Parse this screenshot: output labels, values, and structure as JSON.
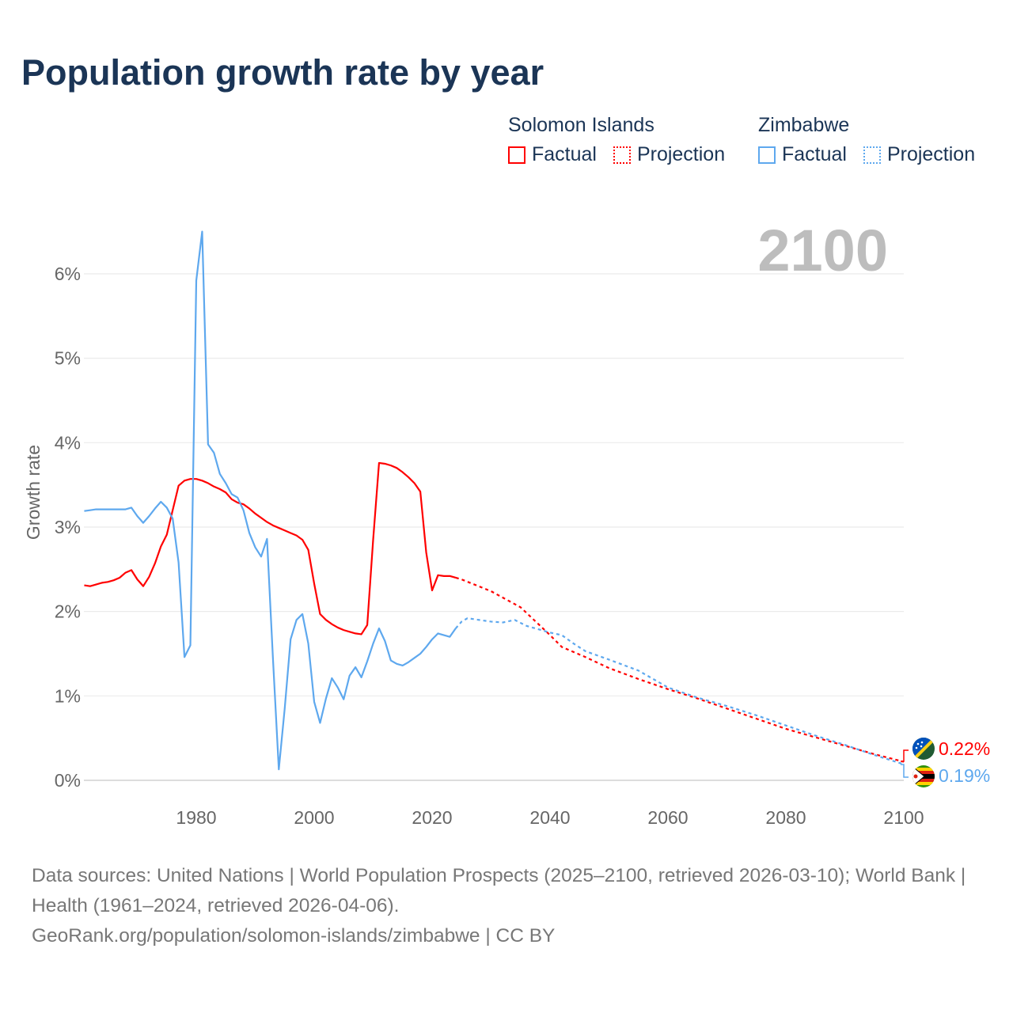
{
  "title": "Population growth rate by year",
  "legend": {
    "groups": [
      {
        "name": "Solomon Islands",
        "color": "#ff0000",
        "factual": "Factual",
        "projection": "Projection"
      },
      {
        "name": "Zimbabwe",
        "color": "#5ea8ee",
        "factual": "Factual",
        "projection": "Projection"
      }
    ]
  },
  "year_watermark": "2100",
  "end_labels": {
    "solomon": "0.22%",
    "zimbabwe": "0.19%"
  },
  "footer": {
    "sources": "Data sources: United Nations | World Population Prospects (2025–2100, retrieved 2026-03-10); World Bank | Health (1961–2024, retrieved 2026-04-06).",
    "credit": "GeoRank.org/population/solomon-islands/zimbabwe | CC BY"
  },
  "chart_data": {
    "type": "line",
    "title": "Population growth rate by year",
    "xlabel": "",
    "ylabel": "Growth rate",
    "xlim": [
      1961,
      2100
    ],
    "ylim": [
      0,
      6
    ],
    "x_ticks": [
      "1980",
      "2000",
      "2020",
      "2040",
      "2060",
      "2080",
      "2100"
    ],
    "y_ticks": [
      "0%",
      "1%",
      "2%",
      "3%",
      "4%",
      "5%",
      "6%"
    ],
    "grid": true,
    "legend_position": "top-right",
    "series": [
      {
        "name": "Solomon Islands — Factual",
        "color": "#ff0000",
        "dashed": false,
        "x": [
          1961,
          1962,
          1963,
          1964,
          1965,
          1966,
          1967,
          1968,
          1969,
          1970,
          1971,
          1972,
          1973,
          1974,
          1975,
          1976,
          1977,
          1978,
          1979,
          1980,
          1981,
          1982,
          1983,
          1984,
          1985,
          1986,
          1987,
          1988,
          1989,
          1990,
          1991,
          1992,
          1993,
          1994,
          1995,
          1996,
          1997,
          1998,
          1999,
          2000,
          2001,
          2002,
          2003,
          2004,
          2005,
          2006,
          2007,
          2008,
          2009,
          2010,
          2011,
          2012,
          2013,
          2014,
          2015,
          2016,
          2017,
          2018,
          2019,
          2020,
          2021,
          2022,
          2023,
          2024
        ],
        "y": [
          2.31,
          2.3,
          2.32,
          2.34,
          2.35,
          2.37,
          2.4,
          2.46,
          2.49,
          2.38,
          2.3,
          2.41,
          2.57,
          2.77,
          2.91,
          3.2,
          3.49,
          3.55,
          3.57,
          3.57,
          3.55,
          3.52,
          3.48,
          3.45,
          3.41,
          3.33,
          3.29,
          3.27,
          3.22,
          3.16,
          3.11,
          3.06,
          3.02,
          2.99,
          2.96,
          2.93,
          2.9,
          2.85,
          2.73,
          2.33,
          1.97,
          1.9,
          1.85,
          1.81,
          1.78,
          1.76,
          1.74,
          1.73,
          1.84,
          2.85,
          3.76,
          3.75,
          3.73,
          3.7,
          3.65,
          3.59,
          3.52,
          3.42,
          2.7,
          2.25,
          2.43,
          2.42,
          2.42,
          2.4
        ]
      },
      {
        "name": "Solomon Islands — Projection",
        "color": "#ff0000",
        "dashed": true,
        "x": [
          2024,
          2025,
          2030,
          2035,
          2040,
          2042,
          2046,
          2050,
          2055,
          2060,
          2065,
          2070,
          2075,
          2080,
          2085,
          2090,
          2095,
          2100
        ],
        "y": [
          2.4,
          2.38,
          2.24,
          2.05,
          1.72,
          1.58,
          1.46,
          1.33,
          1.2,
          1.08,
          0.97,
          0.85,
          0.73,
          0.61,
          0.51,
          0.41,
          0.31,
          0.22
        ]
      },
      {
        "name": "Zimbabwe — Factual",
        "color": "#5ea8ee",
        "dashed": false,
        "x": [
          1961,
          1962,
          1963,
          1964,
          1965,
          1966,
          1967,
          1968,
          1969,
          1970,
          1971,
          1972,
          1973,
          1974,
          1975,
          1976,
          1977,
          1978,
          1979,
          1980,
          1981,
          1982,
          1983,
          1984,
          1985,
          1986,
          1987,
          1988,
          1989,
          1990,
          1991,
          1992,
          1993,
          1994,
          1995,
          1996,
          1997,
          1998,
          1999,
          2000,
          2001,
          2002,
          2003,
          2004,
          2005,
          2006,
          2007,
          2008,
          2009,
          2010,
          2011,
          2012,
          2013,
          2014,
          2015,
          2016,
          2017,
          2018,
          2019,
          2020,
          2021,
          2022,
          2023,
          2024
        ],
        "y": [
          3.19,
          3.2,
          3.21,
          3.21,
          3.21,
          3.21,
          3.21,
          3.21,
          3.23,
          3.13,
          3.05,
          3.13,
          3.22,
          3.3,
          3.23,
          3.1,
          2.58,
          1.46,
          1.6,
          5.92,
          6.5,
          3.98,
          3.88,
          3.63,
          3.52,
          3.39,
          3.35,
          3.2,
          2.93,
          2.76,
          2.65,
          2.86,
          1.45,
          0.13,
          0.85,
          1.67,
          1.9,
          1.97,
          1.62,
          0.93,
          0.68,
          0.97,
          1.21,
          1.1,
          0.96,
          1.24,
          1.34,
          1.22,
          1.41,
          1.62,
          1.8,
          1.65,
          1.42,
          1.38,
          1.36,
          1.4,
          1.45,
          1.5,
          1.58,
          1.67,
          1.74,
          1.72,
          1.7,
          1.8
        ]
      },
      {
        "name": "Zimbabwe — Projection",
        "color": "#5ea8ee",
        "dashed": true,
        "x": [
          2024,
          2025,
          2026,
          2030,
          2032,
          2034,
          2036,
          2040,
          2042,
          2044,
          2046,
          2050,
          2055,
          2060,
          2065,
          2070,
          2075,
          2080,
          2085,
          2090,
          2095,
          2100
        ],
        "y": [
          1.8,
          1.88,
          1.92,
          1.88,
          1.87,
          1.9,
          1.83,
          1.75,
          1.72,
          1.62,
          1.53,
          1.43,
          1.3,
          1.1,
          0.98,
          0.88,
          0.77,
          0.65,
          0.53,
          0.42,
          0.3,
          0.19
        ]
      }
    ]
  }
}
